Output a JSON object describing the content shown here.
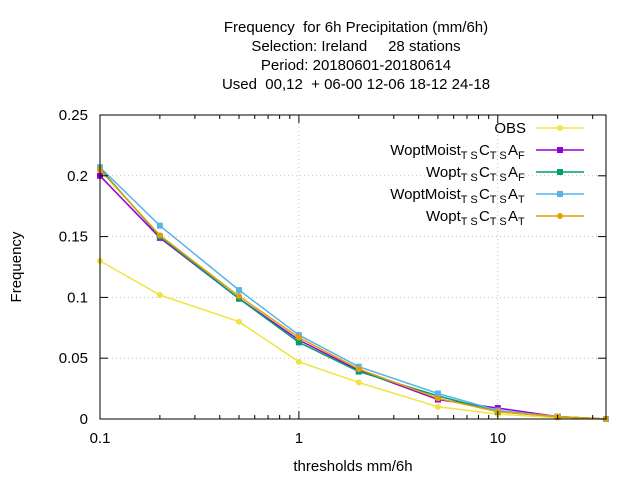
{
  "chart_data": {
    "type": "line",
    "title_lines": [
      "Frequency  for 6h Precipitation (mm/6h)",
      "Selection: Ireland     28 stations",
      "Period: 20180601-20180614",
      "Used  00,12  + 06-00 12-06 18-12 24-18"
    ],
    "xlabel": "thresholds mm/6h",
    "ylabel": "Frequency",
    "x_scale": "log",
    "xlim": [
      0.1,
      35
    ],
    "ylim": [
      0,
      0.25
    ],
    "x_ticks": [
      0.1,
      1,
      10
    ],
    "x_tick_labels": [
      "0.1",
      "1",
      "10"
    ],
    "y_ticks": [
      0,
      0.05,
      0.1,
      0.15,
      0.2,
      0.25
    ],
    "y_tick_labels": [
      "0",
      "0.05",
      "0.1",
      "0.15",
      "0.2",
      "0.25"
    ],
    "grid": true,
    "legend_position": "top-right",
    "x": [
      0.1,
      0.2,
      0.5,
      1,
      2,
      5,
      10,
      20,
      35
    ],
    "series": [
      {
        "name": "OBS",
        "name_parts": [
          [
            "OBS",
            ""
          ]
        ],
        "color": "#f0e442",
        "marker": "circle",
        "values": [
          0.13,
          0.102,
          0.08,
          0.047,
          0.03,
          0.01,
          0.004,
          0.001,
          0.0
        ]
      },
      {
        "name": "WoptMoist TS C TS A F",
        "name_parts": [
          [
            "WoptMoist",
            "T S"
          ],
          [
            "C",
            "T S"
          ],
          [
            "A",
            "F"
          ]
        ],
        "color": "#9400d3",
        "marker": "square",
        "values": [
          0.2,
          0.149,
          0.099,
          0.065,
          0.04,
          0.016,
          0.009,
          0.002,
          0.0
        ]
      },
      {
        "name": "Wopt TS C TS A F",
        "name_parts": [
          [
            "Wopt",
            "T S"
          ],
          [
            "C",
            "T S"
          ],
          [
            "A",
            "F"
          ]
        ],
        "color": "#009e73",
        "marker": "square",
        "values": [
          0.206,
          0.15,
          0.099,
          0.063,
          0.039,
          0.019,
          0.006,
          0.002,
          0.0
        ]
      },
      {
        "name": "WoptMoist TS C TS A T",
        "name_parts": [
          [
            "WoptMoist",
            "T S"
          ],
          [
            "C",
            "T S"
          ],
          [
            "A",
            "T"
          ]
        ],
        "color": "#56b4e9",
        "marker": "square",
        "values": [
          0.207,
          0.159,
          0.106,
          0.069,
          0.043,
          0.021,
          0.007,
          0.002,
          0.0
        ]
      },
      {
        "name": "Wopt TS C TS A T",
        "name_parts": [
          [
            "Wopt",
            "T S"
          ],
          [
            "C",
            "T S"
          ],
          [
            "A",
            "T"
          ]
        ],
        "color": "#e69f00",
        "marker": "circle",
        "values": [
          0.205,
          0.151,
          0.101,
          0.067,
          0.041,
          0.017,
          0.006,
          0.002,
          0.0
        ]
      }
    ]
  }
}
